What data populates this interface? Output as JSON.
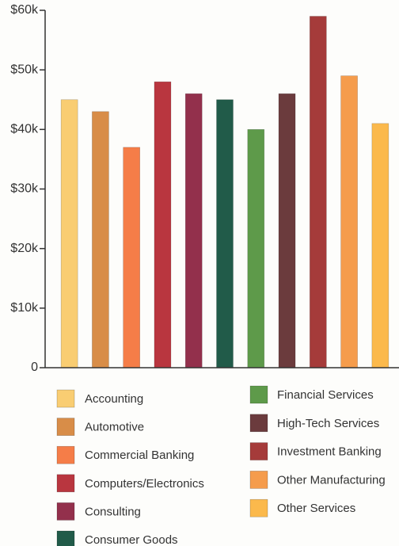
{
  "chart_data": {
    "type": "bar",
    "categories": [
      "Accounting",
      "Automotive",
      "Commercial Banking",
      "Computers/Electronics",
      "Consulting",
      "Consumer Goods",
      "Financial Services",
      "High-Tech Services",
      "Investment Banking",
      "Other Manufacturing",
      "Other Services"
    ],
    "values": [
      45000,
      43000,
      37000,
      48000,
      46000,
      45000,
      40000,
      46000,
      59000,
      49000,
      41000
    ],
    "colors": [
      "#f9cd72",
      "#d88d48",
      "#f57d48",
      "#b9363f",
      "#93304c",
      "#215b49",
      "#5e9a4a",
      "#6b3b3d",
      "#a53b3a",
      "#f59c4c",
      "#fbb94c"
    ],
    "ylim": [
      0,
      60000
    ],
    "yticks": [
      0,
      {
        "value": 10000,
        "label": "$10k"
      },
      {
        "value": 20000,
        "label": "$20k"
      },
      {
        "value": 30000,
        "label": "$30k"
      },
      {
        "value": 40000,
        "label": "$40k"
      },
      {
        "value": 50000,
        "label": "$50k"
      },
      {
        "value": 60000,
        "label": "$60k"
      }
    ],
    "grid": false
  }
}
